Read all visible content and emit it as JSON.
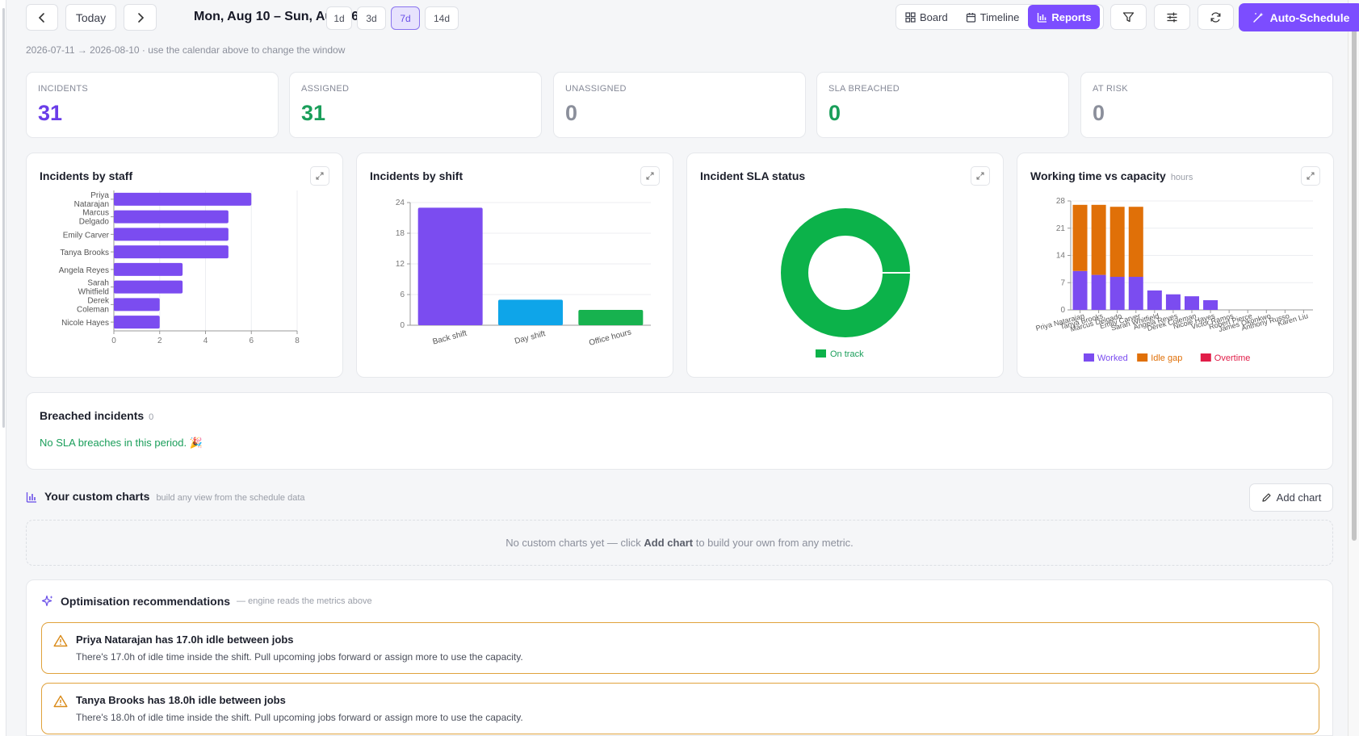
{
  "toolbar": {
    "today_label": "Today",
    "range_title": "Mon, Aug 10 – Sun, Aug 16",
    "zoom_options": [
      "1d",
      "3d",
      "7d",
      "14d"
    ],
    "zoom_selected": "7d",
    "views": [
      {
        "label": "Board",
        "icon": "grid-icon"
      },
      {
        "label": "Timeline",
        "icon": "calendar-icon"
      },
      {
        "label": "Reports",
        "icon": "bar-chart-icon"
      }
    ],
    "view_selected": "Reports",
    "auto_schedule_label": "Auto-Schedule"
  },
  "subtitle": "2026-07-11 → 2026-08-10 · use the calendar above to change the window",
  "stats": [
    {
      "label": "INCIDENTS",
      "value": "31",
      "color": "#6a3de8"
    },
    {
      "label": "ASSIGNED",
      "value": "31",
      "color": "#1a9e5a"
    },
    {
      "label": "UNASSIGNED",
      "value": "0",
      "color": "#8b8f9b"
    },
    {
      "label": "SLA BREACHED",
      "value": "0",
      "color": "#1a9e5a"
    },
    {
      "label": "AT RISK",
      "value": "0",
      "color": "#8b8f9b"
    }
  ],
  "cards": {
    "by_staff": {
      "title": "Incidents by staff"
    },
    "by_shift": {
      "title": "Incidents by shift"
    },
    "sla": {
      "title": "Incident SLA status"
    },
    "capacity": {
      "title": "Working time vs capacity",
      "hint": "hours"
    }
  },
  "chart_data": [
    {
      "type": "bar",
      "orientation": "horizontal",
      "title": "Incidents by staff",
      "categories": [
        "Priya Natarajan",
        "Marcus Delgado",
        "Emily Carver",
        "Tanya Brooks",
        "Angela Reyes",
        "Sarah Whitfield",
        "Derek Coleman",
        "Nicole Hayes"
      ],
      "values": [
        6,
        5,
        5,
        5,
        3,
        3,
        2,
        2
      ],
      "xlim": [
        0,
        8
      ],
      "xticks": [
        0,
        2,
        4,
        6,
        8
      ],
      "color": "#7b4cf0",
      "grid": true
    },
    {
      "type": "bar",
      "title": "Incidents by shift",
      "categories": [
        "Back shift",
        "Day shift",
        "Office hours"
      ],
      "values": [
        23,
        5,
        3
      ],
      "colors": [
        "#7b4cf0",
        "#0ea5e9",
        "#17b24f"
      ],
      "ylim": [
        0,
        24
      ],
      "yticks": [
        0,
        6,
        12,
        18,
        24
      ],
      "grid": true
    },
    {
      "type": "pie",
      "style": "donut",
      "title": "Incident SLA status",
      "series": [
        {
          "name": "On track",
          "value": 31,
          "color": "#0cb24a"
        }
      ],
      "legend": "bottom"
    },
    {
      "type": "bar",
      "stacked": true,
      "title": "Working time vs capacity",
      "unit": "hours",
      "categories": [
        "Priya Natarajan",
        "Tanya Brooks",
        "Marcus Delgado",
        "Emily Carver",
        "Sarah Whitfield",
        "Angela Reyes",
        "Derek Coleman",
        "Nicole Hayes",
        "Victor Ramos",
        "Robert Pierce",
        "James Okonkwo",
        "Anthony Russo",
        "Karen Liu"
      ],
      "series": [
        {
          "name": "Worked",
          "color": "#7b4cf0",
          "values": [
            10,
            9,
            8.5,
            8.5,
            5,
            4,
            3.5,
            2.5,
            0,
            0,
            0,
            0,
            0
          ]
        },
        {
          "name": "Idle gap",
          "color": "#e07008",
          "values": [
            17,
            18,
            18,
            18,
            0,
            0,
            0,
            0,
            0,
            0,
            0,
            0,
            0
          ]
        },
        {
          "name": "Overtime",
          "color": "#e11d48",
          "values": [
            0,
            0,
            0,
            0,
            0,
            0,
            0,
            0,
            0,
            0,
            0,
            0,
            0
          ]
        }
      ],
      "ylim": [
        0,
        28
      ],
      "yticks": [
        0,
        7,
        14,
        21,
        28
      ],
      "legend": "bottom",
      "grid": true
    }
  ],
  "breached": {
    "title": "Breached incidents",
    "count": "0",
    "message": "No SLA breaches in this period. 🎉"
  },
  "custom": {
    "title": "Your custom charts",
    "hint": "build any view from the schedule data",
    "add_label": "Add chart",
    "empty_pre": "No custom charts yet — click ",
    "empty_bold": "Add chart",
    "empty_post": " to build your own from any metric."
  },
  "optimisation": {
    "title": "Optimisation recommendations",
    "hint": "— engine reads the metrics above",
    "items": [
      {
        "title": "Priya Natarajan has 17.0h idle between jobs",
        "desc": "There's 17.0h of idle time inside the shift. Pull upcoming jobs forward or assign more to use the capacity."
      },
      {
        "title": "Tanya Brooks has 18.0h idle between jobs",
        "desc": "There's 18.0h of idle time inside the shift. Pull upcoming jobs forward or assign more to use the capacity."
      }
    ]
  }
}
